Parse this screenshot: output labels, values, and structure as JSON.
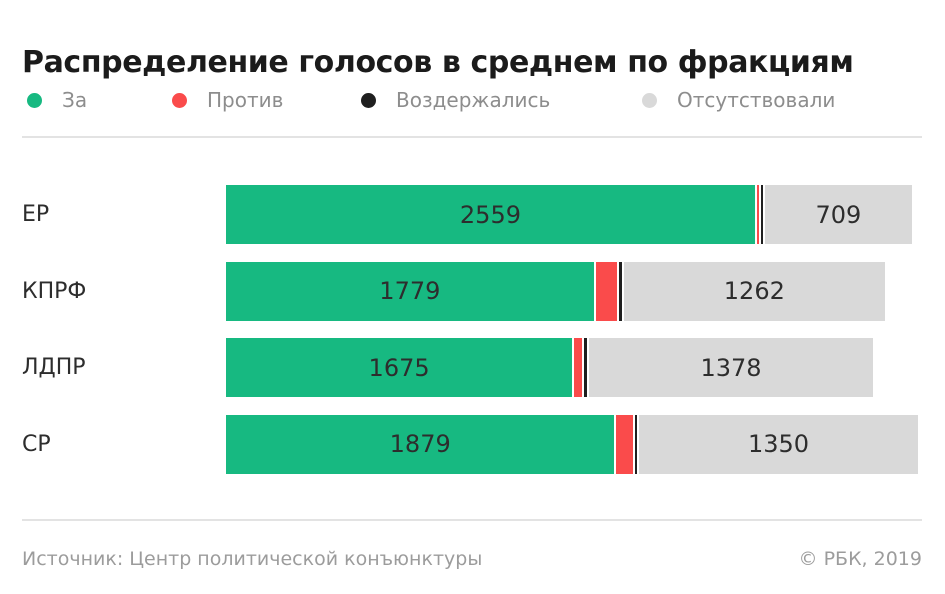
{
  "title": "Распределение голосов в среднем по фракциям",
  "legend": [
    {
      "label": "За",
      "color": "#17b981"
    },
    {
      "label": "Против",
      "color": "#fa4b4b"
    },
    {
      "label": "Воздержались",
      "color": "#1f1f1f"
    },
    {
      "label": "Отсутствовали",
      "color": "#d9d9d9"
    }
  ],
  "chart_data": {
    "type": "bar",
    "orientation": "horizontal",
    "stacked": true,
    "grid": false,
    "axes_shown": false,
    "legend_position": "top",
    "title": "Распределение голосов в среднем по фракциям",
    "categories": [
      "ЕР",
      "КПРФ",
      "ЛДПР",
      "СР"
    ],
    "series": [
      {
        "name": "За",
        "color": "#17b981",
        "values": [
          2559,
          1779,
          1675,
          1879
        ],
        "labels_shown": true,
        "estimated": false
      },
      {
        "name": "Против",
        "color": "#fa4b4b",
        "values": [
          10,
          105,
          38,
          80
        ],
        "labels_shown": false,
        "estimated": true
      },
      {
        "name": "Воздержались",
        "color": "#1f1f1f",
        "values": [
          10,
          12,
          12,
          10
        ],
        "labels_shown": false,
        "estimated": true
      },
      {
        "name": "Отсутствовали",
        "color": "#d9d9d9",
        "values": [
          709,
          1262,
          1378,
          1350
        ],
        "labels_shown": true,
        "estimated": false
      }
    ]
  },
  "footer": {
    "source": "Источник: Центр политической конъюнктуры",
    "copyright": "© РБК, 2019"
  }
}
